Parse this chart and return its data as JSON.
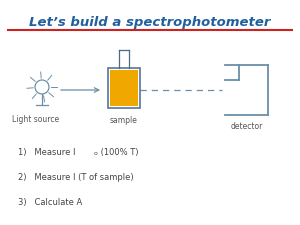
{
  "title": "Let’s build a spectrophotometer",
  "title_color": "#2060a0",
  "title_fontsize": 9.5,
  "underline_color": "#cc2222",
  "bg_color": "#ffffff",
  "label_light_source": "Light source",
  "label_sample": "sample",
  "label_detector": "detector",
  "step1_pre": "1)   Measure I",
  "step1_sub": "o",
  "step1_post": " (100% T)",
  "step2": "2)   Measure I (T of sample)",
  "step3": "3)   Calculate A",
  "line_color": "#6b8fa8",
  "cuvette_fill": "#f0a800",
  "cuvette_border": "#4a6a8a",
  "detector_color": "#6b8fa8",
  "text_color": "#555555",
  "step_color": "#444444",
  "ray_color": "#6b8fa8"
}
